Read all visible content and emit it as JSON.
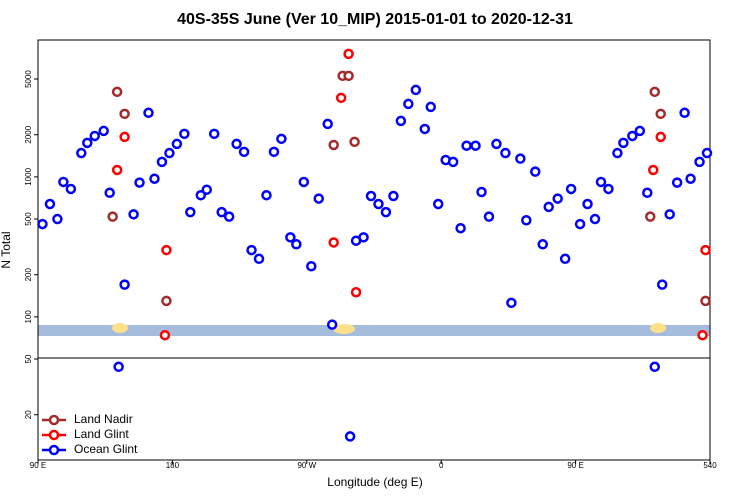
{
  "chart_data": {
    "type": "scatter",
    "title": "40S-35S June (Ver 10_MIP)   2015-01-01 to 2020-12-31",
    "x_label": "Longitude (deg E)",
    "y_label": "N Total",
    "xlim": [
      90,
      540
    ],
    "ylim": [
      9.5,
      9500
    ],
    "log_y": true,
    "legend": "bottom-left",
    "xticks": [
      {
        "value": 90,
        "label": "90 E"
      },
      180,
      {
        "value": 270,
        "label": "90 W"
      },
      {
        "value": 360,
        "label": "0"
      },
      {
        "value": 450,
        "label": "90 E"
      },
      540
    ],
    "yticks": [
      20,
      50,
      100,
      200,
      500,
      1000,
      2000,
      5000
    ],
    "series": [
      {
        "name": "Land Nadir",
        "color": "#a52a2a",
        "x": [
          140,
          143,
          148,
          176,
          288,
          294,
          298,
          302,
          500,
          503,
          507,
          537
        ],
        "values": [
          520,
          4050,
          2820,
          130,
          1690,
          5270,
          5270,
          1780,
          520,
          4050,
          2820,
          130
        ]
      },
      {
        "name": "Land Glint",
        "color": "#ff0000",
        "x": [
          143,
          148,
          176,
          175,
          288,
          293,
          298,
          303,
          502,
          507,
          535,
          537
        ],
        "values": [
          1120,
          1930,
          300,
          74,
          340,
          3670,
          7560,
          150,
          1120,
          1930,
          74,
          300
        ]
      },
      {
        "name": "Ocean Glint",
        "color": "#0000ff",
        "x": [
          93,
          98,
          103,
          107,
          112,
          119,
          123,
          128,
          134,
          138,
          144,
          148,
          154,
          158,
          164,
          168,
          173,
          178,
          183,
          188,
          192,
          199,
          203,
          208,
          213,
          218,
          223,
          228,
          233,
          238,
          243,
          248,
          253,
          259,
          263,
          268,
          273,
          278,
          284,
          287,
          299,
          303,
          308,
          313,
          318,
          323,
          328,
          333,
          338,
          343,
          349,
          353,
          358,
          363,
          368,
          373,
          377,
          383,
          387,
          392,
          397,
          403,
          407,
          413,
          417,
          423,
          428,
          432,
          438,
          443,
          447,
          453,
          458,
          463,
          467,
          472,
          478,
          482,
          488,
          493,
          498,
          503,
          508,
          513,
          518,
          523,
          527,
          533,
          538
        ],
        "values": [
          460,
          640,
          500,
          920,
          820,
          1480,
          1750,
          1960,
          2130,
          770,
          44,
          170,
          540,
          910,
          2870,
          970,
          1280,
          1480,
          1720,
          2030,
          560,
          740,
          810,
          2030,
          560,
          520,
          1720,
          1510,
          300,
          260,
          740,
          1510,
          1870,
          370,
          330,
          920,
          230,
          700,
          2390,
          88,
          14,
          350,
          370,
          730,
          640,
          560,
          730,
          2510,
          3320,
          4180,
          2200,
          3160,
          640,
          1320,
          1280,
          430,
          1670,
          1670,
          780,
          520,
          1720,
          1480,
          126,
          1350,
          490,
          1090,
          330,
          610,
          700,
          260,
          820,
          460,
          640,
          500,
          920,
          820,
          1480,
          1750,
          1960,
          2130,
          770,
          44,
          170,
          540,
          910,
          2870,
          970,
          1280,
          1480
        ]
      }
    ]
  }
}
